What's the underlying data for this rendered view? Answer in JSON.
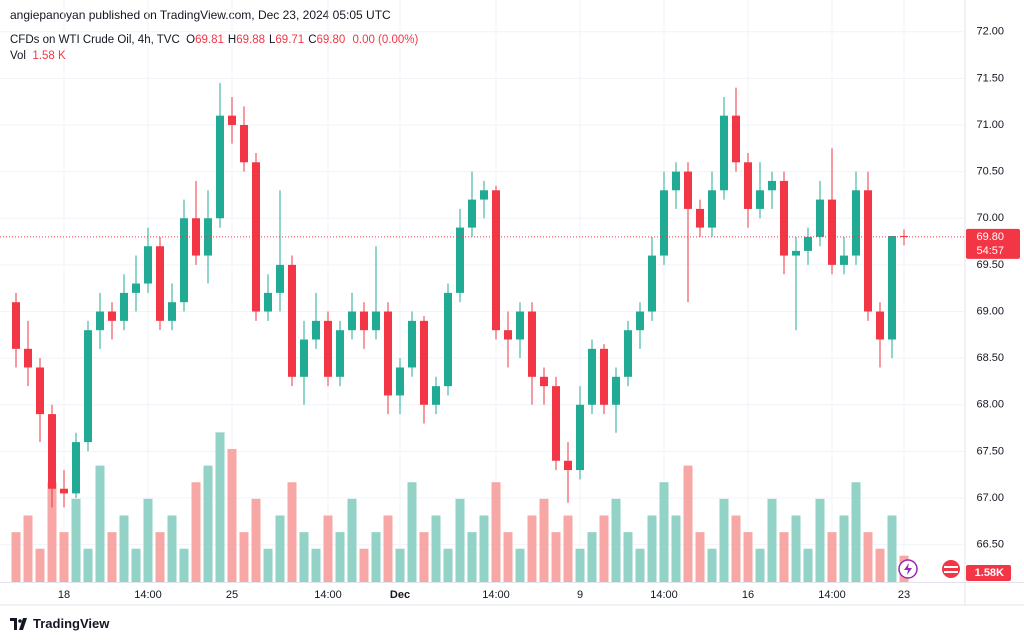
{
  "header": {
    "published": "angiepanoyan published on TradingView.com, Dec 23, 2024 05:05 UTC"
  },
  "footer": {
    "brand": "TradingView"
  },
  "chart_data": {
    "type": "candlestick",
    "symbol": "CFDs on WTI Crude Oil, 4h, TVC",
    "ohlc": [
      {
        "label": "O",
        "value": 69.81
      },
      {
        "label": "H",
        "value": 69.88
      },
      {
        "label": "L",
        "value": 69.71
      },
      {
        "label": "C",
        "value": 69.8
      }
    ],
    "ohlc_labels": [
      "69.81",
      "69.88",
      "69.71",
      "69.80"
    ],
    "change": "0.00 (0.00%)",
    "volume_title": "Vol",
    "volume_text": "1.58 K",
    "price_label": "69.80",
    "countdown": "54:57",
    "volume_axis_label": "1.58K",
    "up_color": "#22ab94",
    "down_color": "#f23645",
    "volume_up_color": "#92d2c7",
    "volume_down_color": "#f7a8a6",
    "ylim": [
      66.1,
      72.34
    ],
    "volume_ylim": [
      0,
      35
    ],
    "yticks": [
      {
        "value": 66.5,
        "label": "66.50"
      },
      {
        "value": 67,
        "label": "67.00"
      },
      {
        "value": 67.5,
        "label": "67.50"
      },
      {
        "value": 68,
        "label": "68.00"
      },
      {
        "value": 68.5,
        "label": "68.50"
      },
      {
        "value": 69,
        "label": "69.00"
      },
      {
        "value": 69.5,
        "label": "69.50"
      },
      {
        "value": 70,
        "label": "70.00"
      },
      {
        "value": 70.5,
        "label": "70.50"
      },
      {
        "value": 71,
        "label": "71.00"
      },
      {
        "value": 71.5,
        "label": "71.50"
      },
      {
        "value": 72,
        "label": "72.00"
      }
    ],
    "x_labels": [
      {
        "index": 4,
        "label": "18"
      },
      {
        "index": 11,
        "label": "14:00"
      },
      {
        "index": 18,
        "label": "25"
      },
      {
        "index": 26,
        "label": "14:00"
      },
      {
        "index": 32,
        "label": "Dec"
      },
      {
        "index": 40,
        "label": "14:00"
      },
      {
        "index": 47,
        "label": "9"
      },
      {
        "index": 54,
        "label": "14:00"
      },
      {
        "index": 61,
        "label": "16"
      },
      {
        "index": 68,
        "label": "14:00"
      },
      {
        "index": 74,
        "label": "23"
      }
    ],
    "grid": true,
    "candles": [
      [
        69.1,
        69.2,
        68.4,
        68.6
      ],
      [
        68.6,
        68.9,
        68.2,
        68.4
      ],
      [
        68.4,
        68.5,
        67.6,
        67.9
      ],
      [
        67.9,
        68.0,
        66.9,
        67.1
      ],
      [
        67.1,
        67.3,
        66.9,
        67.05
      ],
      [
        67.05,
        67.7,
        67.0,
        67.6
      ],
      [
        67.6,
        68.9,
        67.5,
        68.8
      ],
      [
        68.8,
        69.2,
        68.6,
        69.0
      ],
      [
        69.0,
        69.1,
        68.7,
        68.9
      ],
      [
        68.9,
        69.4,
        68.8,
        69.2
      ],
      [
        69.2,
        69.6,
        69.0,
        69.3
      ],
      [
        69.3,
        69.9,
        69.2,
        69.7
      ],
      [
        69.7,
        69.8,
        68.8,
        68.9
      ],
      [
        68.9,
        69.3,
        68.8,
        69.1
      ],
      [
        69.1,
        70.2,
        69.0,
        70.0
      ],
      [
        70.0,
        70.4,
        69.5,
        69.6
      ],
      [
        69.6,
        70.3,
        69.3,
        70.0
      ],
      [
        70.0,
        71.45,
        69.9,
        71.1
      ],
      [
        71.1,
        71.3,
        70.8,
        71.0
      ],
      [
        71.0,
        71.2,
        70.5,
        70.6
      ],
      [
        70.6,
        70.7,
        68.9,
        69.0
      ],
      [
        69.0,
        69.4,
        68.9,
        69.2
      ],
      [
        69.2,
        70.3,
        69.0,
        69.5
      ],
      [
        69.5,
        69.6,
        68.2,
        68.3
      ],
      [
        68.3,
        68.9,
        68.0,
        68.7
      ],
      [
        68.7,
        69.2,
        68.6,
        68.9
      ],
      [
        68.9,
        69.0,
        68.2,
        68.3
      ],
      [
        68.3,
        68.9,
        68.2,
        68.8
      ],
      [
        68.8,
        69.2,
        68.7,
        69.0
      ],
      [
        69.0,
        69.1,
        68.6,
        68.8
      ],
      [
        68.8,
        69.7,
        68.7,
        69.0
      ],
      [
        69.0,
        69.1,
        67.9,
        68.1
      ],
      [
        68.1,
        68.5,
        67.9,
        68.4
      ],
      [
        68.4,
        69.0,
        68.3,
        68.9
      ],
      [
        68.9,
        68.95,
        67.8,
        68.0
      ],
      [
        68.0,
        68.3,
        67.9,
        68.2
      ],
      [
        68.2,
        69.3,
        68.1,
        69.2
      ],
      [
        69.2,
        70.1,
        69.1,
        69.9
      ],
      [
        69.9,
        70.5,
        69.8,
        70.2
      ],
      [
        70.2,
        70.4,
        70.0,
        70.3
      ],
      [
        70.3,
        70.35,
        68.7,
        68.8
      ],
      [
        68.8,
        69.0,
        68.4,
        68.7
      ],
      [
        68.7,
        69.1,
        68.5,
        69.0
      ],
      [
        69.0,
        69.1,
        68.0,
        68.3
      ],
      [
        68.3,
        68.4,
        68.0,
        68.2
      ],
      [
        68.2,
        68.3,
        67.3,
        67.4
      ],
      [
        67.4,
        67.6,
        66.95,
        67.3
      ],
      [
        67.3,
        68.2,
        67.2,
        68.0
      ],
      [
        68.0,
        68.7,
        67.9,
        68.6
      ],
      [
        68.6,
        68.65,
        67.9,
        68.0
      ],
      [
        68.0,
        68.4,
        67.7,
        68.3
      ],
      [
        68.3,
        68.9,
        68.2,
        68.8
      ],
      [
        68.8,
        69.1,
        68.6,
        69.0
      ],
      [
        69.0,
        69.8,
        68.9,
        69.6
      ],
      [
        69.6,
        70.5,
        69.5,
        70.3
      ],
      [
        70.3,
        70.6,
        70.1,
        70.5
      ],
      [
        70.5,
        70.6,
        69.1,
        70.1
      ],
      [
        70.1,
        70.2,
        69.8,
        69.9
      ],
      [
        69.9,
        70.5,
        69.8,
        70.3
      ],
      [
        70.3,
        71.3,
        70.2,
        71.1
      ],
      [
        71.1,
        71.4,
        70.5,
        70.6
      ],
      [
        70.6,
        70.7,
        69.9,
        70.1
      ],
      [
        70.1,
        70.6,
        70.0,
        70.3
      ],
      [
        70.3,
        70.5,
        70.1,
        70.4
      ],
      [
        70.4,
        70.5,
        69.4,
        69.6
      ],
      [
        69.6,
        69.8,
        68.8,
        69.65
      ],
      [
        69.65,
        69.9,
        69.5,
        69.8
      ],
      [
        69.8,
        70.4,
        69.7,
        70.2
      ],
      [
        70.2,
        70.75,
        69.4,
        69.5
      ],
      [
        69.5,
        69.8,
        69.4,
        69.6
      ],
      [
        69.6,
        70.5,
        69.5,
        70.3
      ],
      [
        70.3,
        70.5,
        68.9,
        69.0
      ],
      [
        69.0,
        69.1,
        68.4,
        68.7
      ],
      [
        68.7,
        69.8,
        68.5,
        69.81
      ],
      [
        69.81,
        69.88,
        69.71,
        69.8
      ]
    ],
    "volumes": [
      3,
      4,
      2,
      6,
      3,
      5,
      2,
      7,
      3,
      4,
      2,
      5,
      3,
      4,
      2,
      6,
      7,
      9,
      8,
      3,
      5,
      2,
      4,
      6,
      3,
      2,
      4,
      3,
      5,
      2,
      3,
      4,
      2,
      6,
      3,
      4,
      2,
      5,
      3,
      4,
      6,
      3,
      2,
      4,
      5,
      3,
      4,
      2,
      3,
      4,
      5,
      3,
      2,
      4,
      6,
      4,
      7,
      3,
      2,
      5,
      4,
      3,
      2,
      5,
      3,
      4,
      2,
      5,
      3,
      4,
      6,
      3,
      2,
      4,
      1.58
    ]
  }
}
